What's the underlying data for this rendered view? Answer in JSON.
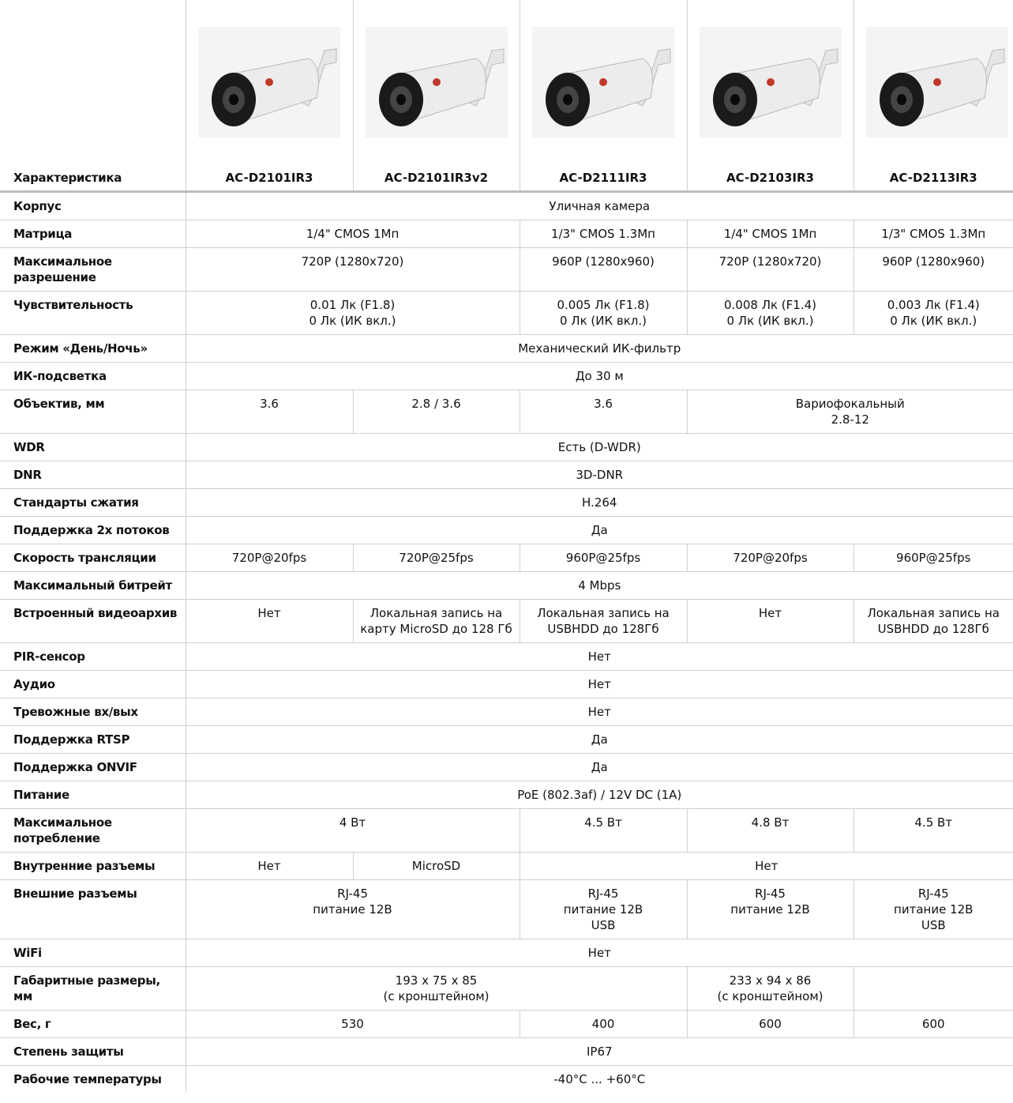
{
  "header": {
    "label": "Характеристика",
    "models": [
      "AC-D2101IR3",
      "AC-D2101IR3v2",
      "AC-D2111IR3",
      "AC-D2103IR3",
      "AC-D2113IR3"
    ]
  },
  "rows": [
    {
      "label": "Корпус",
      "cells": [
        "Уличная камера"
      ]
    },
    {
      "label": "Матрица",
      "cells": [
        "1/4\" CMOS 1Мп",
        "1/3\" CMOS 1.3Мп",
        "1/4\" CMOS 1Мп",
        "1/3\" CMOS 1.3Мп"
      ]
    },
    {
      "label": "Максимальное\nразрешение",
      "cells": [
        "720P (1280x720)",
        "960P (1280x960)",
        "720P (1280x720)",
        "960P (1280x960)"
      ]
    },
    {
      "label": "Чувствительность",
      "cells": [
        "0.01 Лк (F1.8)\n0 Лк (ИК вкл.)",
        "0.005 Лк (F1.8)\n0 Лк (ИК вкл.)",
        "0.008 Лк (F1.4)\n0 Лк (ИК вкл.)",
        "0.003 Лк (F1.4)\n0 Лк (ИК вкл.)"
      ]
    },
    {
      "label": "Режим «День/Ночь»",
      "cells": [
        "Механический ИК-фильтр"
      ]
    },
    {
      "label": "ИК-подсветка",
      "cells": [
        "До 30 м"
      ]
    },
    {
      "label": "Объектив, мм",
      "cells": [
        "3.6",
        "2.8 / 3.6",
        "3.6",
        "Вариофокальный\n2.8-12"
      ]
    },
    {
      "label": "WDR",
      "cells": [
        "Есть (D-WDR)"
      ]
    },
    {
      "label": "DNR",
      "cells": [
        "3D-DNR"
      ]
    },
    {
      "label": "Стандарты сжатия",
      "cells": [
        "H.264"
      ]
    },
    {
      "label": "Поддержка 2х потоков",
      "cells": [
        "Да"
      ]
    },
    {
      "label": "Скорость трансляции",
      "cells": [
        "720P@20fps",
        "720P@25fps",
        "960P@25fps",
        "720P@20fps",
        "960P@25fps"
      ]
    },
    {
      "label": "Максимальный битрейт",
      "cells": [
        "4 Mbps"
      ]
    },
    {
      "label": "Встроенный видеоархив",
      "cells": [
        "Нет",
        "Локальная запись на карту MicroSD до 128 Гб",
        "Локальная запись на USBHDD до 128Гб",
        "Нет",
        "Локальная запись на USBHDD до 128Гб"
      ]
    },
    {
      "label": "PIR-сенсор",
      "cells": [
        "Нет"
      ]
    },
    {
      "label": "Аудио",
      "cells": [
        "Нет"
      ]
    },
    {
      "label": "Тревожные вх/вых",
      "cells": [
        "Нет"
      ]
    },
    {
      "label": "Поддержка RTSP",
      "cells": [
        "Да"
      ]
    },
    {
      "label": "Поддержка ONVIF",
      "cells": [
        "Да"
      ]
    },
    {
      "label": "Питание",
      "cells": [
        "PoE (802.3af) / 12V DC (1A)"
      ]
    },
    {
      "label": "Максимальное\nпотребление",
      "cells": [
        "4 Вт",
        "4.5 Вт",
        "4.8 Вт",
        "4.5 Вт"
      ]
    },
    {
      "label": "Внутренние разъемы",
      "cells": [
        "Нет",
        "MicroSD",
        "Нет"
      ]
    },
    {
      "label": "Внешние разъемы",
      "cells": [
        "RJ-45\nпитание 12В",
        "RJ-45\nпитание 12В\nUSB",
        "RJ-45\nпитание 12В",
        "RJ-45\nпитание 12В\nUSB"
      ]
    },
    {
      "label": "WiFi",
      "cells": [
        "Нет"
      ]
    },
    {
      "label": "Габаритные размеры,\nмм",
      "cells": [
        "193 x 75 x 85\n(с кронштейном)",
        "233 x 94 x 86\n(с кронштейном)"
      ]
    },
    {
      "label": "Вес, г",
      "cells": [
        "530",
        "400",
        "600",
        "600"
      ]
    },
    {
      "label": "Степень защиты",
      "cells": [
        "IP67"
      ]
    },
    {
      "label": "Рабочие температуры",
      "cells": [
        "-40°C ... +60°C"
      ]
    }
  ]
}
